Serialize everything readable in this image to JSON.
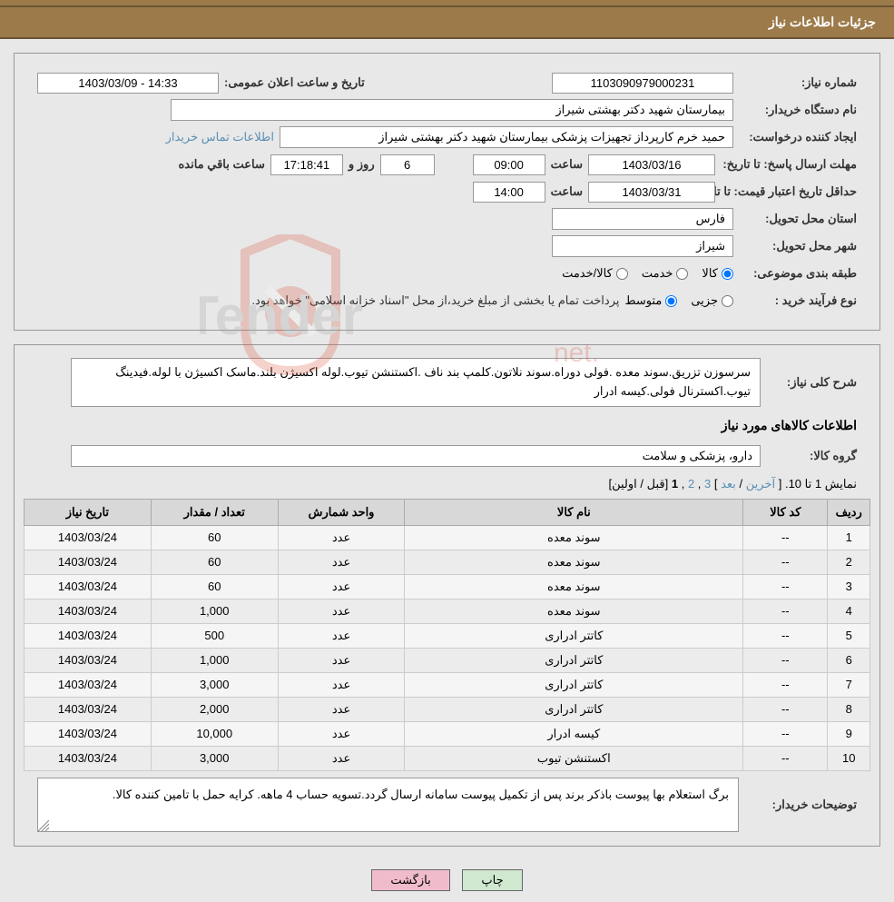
{
  "header": {
    "title": "جزئیات اطلاعات نیاز"
  },
  "info": {
    "need_no_label": "شماره نیاز:",
    "need_no": "1103090979000231",
    "announce_label": "تاریخ و ساعت اعلان عمومی:",
    "announce_value": "14:33 - 1403/03/09",
    "buyer_org_label": "نام دستگاه خریدار:",
    "buyer_org": "بیمارستان شهید دکتر بهشتی شیراز",
    "requester_label": "ایجاد کننده درخواست:",
    "requester": "حمید خرم کارپرداز تجهیزات پزشکی بیمارستان شهید دکتر بهشتی شیراز",
    "contact_link": "اطلاعات تماس خریدار",
    "deadline_label": "مهلت ارسال پاسخ: تا تاریخ:",
    "deadline_date": "1403/03/16",
    "time_lbl": "ساعت",
    "deadline_time": "09:00",
    "days_left": "6",
    "days_lbl": "روز و",
    "time_left": "17:18:41",
    "remain_lbl": "ساعت باقي مانده",
    "validity_label": "حداقل تاریخ اعتبار قیمت: تا تاریخ:",
    "validity_date": "1403/03/31",
    "validity_time": "14:00",
    "province_label": "استان محل تحویل:",
    "province": "فارس",
    "city_label": "شهر محل تحویل:",
    "city": "شیراز",
    "class_label": "طبقه بندی موضوعی:",
    "class_opts": [
      "کالا",
      "خدمت",
      "کالا/خدمت"
    ],
    "ptype_label": "نوع فرآیند خرید :",
    "ptype_opts": [
      "جزیی",
      "متوسط"
    ],
    "ptype_note": "پرداخت تمام یا بخشی از مبلغ خرید،از محل \"اسناد خزانه اسلامی\" خواهد بود."
  },
  "desc": {
    "overall_label": "شرح کلی نیاز:",
    "overall_text": "سرسوزن تزریق.سوند معده .فولی دوراه.سوند نلاتون.کلمپ بند ناف .اکستنشن تیوب.لوله اکسیژن بلند.ماسک اکسیژن با لوله.فیدینگ تیوب.اکسترنال فولی.کیسه ادرار",
    "items_section": "اطلاعات کالاهای مورد نیاز",
    "group_label": "گروه کالا:",
    "group_value": "دارو، پزشکی و سلامت"
  },
  "pager": {
    "range": "نمايش 1 تا 10.",
    "last": "آخرین",
    "next": "بعد",
    "p3": "3",
    "p2": "2",
    "p1": "1",
    "prev_first": "[قبل / اولین]",
    "open": "[",
    "slash": " / ",
    "close": "]"
  },
  "table": {
    "columns": [
      "ردیف",
      "کد کالا",
      "نام کالا",
      "واحد شمارش",
      "تعداد / مقدار",
      "تاریخ نیاز"
    ],
    "col_widths": [
      "5%",
      "10%",
      "40%",
      "15%",
      "15%",
      "15%"
    ],
    "header_bg": "#d8d8d8",
    "rows": [
      [
        "1",
        "--",
        "سوند معده",
        "عدد",
        "60",
        "1403/03/24"
      ],
      [
        "2",
        "--",
        "سوند معده",
        "عدد",
        "60",
        "1403/03/24"
      ],
      [
        "3",
        "--",
        "سوند معده",
        "عدد",
        "60",
        "1403/03/24"
      ],
      [
        "4",
        "--",
        "سوند معده",
        "عدد",
        "1,000",
        "1403/03/24"
      ],
      [
        "5",
        "--",
        "کاتتر ادراری",
        "عدد",
        "500",
        "1403/03/24"
      ],
      [
        "6",
        "--",
        "کاتتر ادراری",
        "عدد",
        "1,000",
        "1403/03/24"
      ],
      [
        "7",
        "--",
        "کاتتر ادراری",
        "عدد",
        "3,000",
        "1403/03/24"
      ],
      [
        "8",
        "--",
        "کاتتر ادراری",
        "عدد",
        "2,000",
        "1403/03/24"
      ],
      [
        "9",
        "--",
        "کیسه ادرار",
        "عدد",
        "10,000",
        "1403/03/24"
      ],
      [
        "10",
        "--",
        "اکستنشن تیوب",
        "عدد",
        "3,000",
        "1403/03/24"
      ]
    ]
  },
  "comments": {
    "label": "توضیحات خریدار:",
    "text": "برگ استعلام بها پیوست باذکر برند پس از تکمیل پیوست سامانه ارسال گردد.تسویه حساب 4 ماهه. کرایه حمل با تامین کننده کالا."
  },
  "buttons": {
    "print": "چاپ",
    "back": "بازگشت"
  },
  "colors": {
    "header_bg": "#9c7a4a",
    "page_bg": "#e8e8e8",
    "link": "#5a8fb5",
    "btn_print_bg": "#cfe8cf",
    "btn_back_bg": "#f0bccc",
    "watermark": "#d94f3a"
  }
}
